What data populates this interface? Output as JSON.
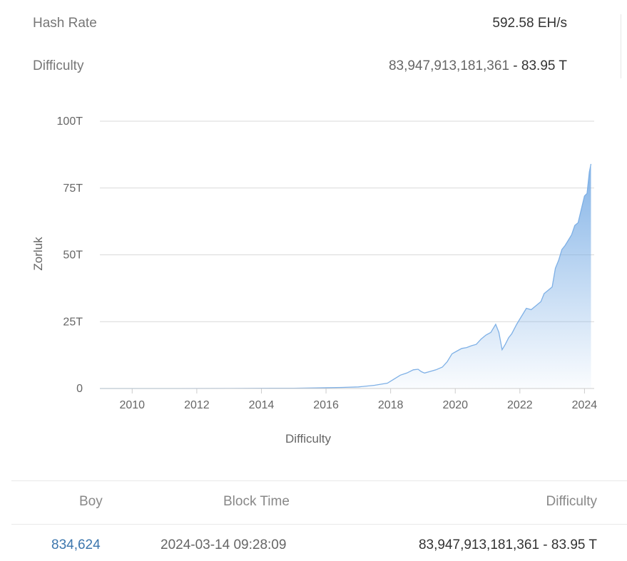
{
  "stats": {
    "hash_rate": {
      "label": "Hash Rate",
      "value": "592.58 EH/s"
    },
    "difficulty": {
      "label": "Difficulty",
      "value": "83,947,913,181,361",
      "sep": " - ",
      "short": "83.95 T"
    }
  },
  "chart_data": {
    "type": "area",
    "xlabel": "Difficulty",
    "ylabel": "Zorluk",
    "xlim": [
      2009.0,
      2024.3
    ],
    "ylim": [
      0,
      100
    ],
    "y_unit": "T",
    "x_ticks": [
      "2010",
      "2012",
      "2014",
      "2016",
      "2018",
      "2020",
      "2022",
      "2024"
    ],
    "y_ticks": [
      "0",
      "25T",
      "50T",
      "75T",
      "100T"
    ],
    "grid": true,
    "legend": "none",
    "color": "#7eb0e6",
    "series": [
      {
        "x": [
          2009.0,
          2011.0,
          2013.0,
          2015.0,
          2016.0,
          2016.5,
          2017.0,
          2017.5,
          2017.9,
          2018.1,
          2018.3,
          2018.5,
          2018.7,
          2018.85,
          2018.95,
          2019.05,
          2019.2,
          2019.4,
          2019.6,
          2019.75,
          2019.9,
          2020.05,
          2020.2,
          2020.35,
          2020.5,
          2020.65,
          2020.8,
          2020.95,
          2021.1,
          2021.25,
          2021.35,
          2021.45,
          2021.55,
          2021.65,
          2021.75,
          2021.9,
          2022.0,
          2022.1,
          2022.2,
          2022.35,
          2022.5,
          2022.65,
          2022.75,
          2022.9,
          2023.0,
          2023.1,
          2023.2,
          2023.3,
          2023.4,
          2023.5,
          2023.6,
          2023.7,
          2023.8,
          2023.9,
          2024.0,
          2024.08,
          2024.15,
          2024.2
        ],
        "y": [
          0,
          0,
          0.02,
          0.1,
          0.3,
          0.4,
          0.6,
          1.2,
          2.0,
          3.5,
          5.0,
          5.8,
          7.0,
          7.2,
          6.3,
          5.8,
          6.3,
          7.0,
          8.0,
          10.0,
          13.0,
          14.0,
          15.0,
          15.3,
          16.0,
          16.5,
          18.5,
          20.0,
          21.0,
          24.0,
          21.0,
          14.5,
          16.5,
          19.0,
          20.5,
          24.0,
          26.0,
          28.0,
          30.0,
          29.5,
          31.0,
          32.5,
          35.5,
          37.0,
          38.0,
          45.0,
          48.0,
          52.0,
          53.5,
          55.5,
          57.5,
          61.0,
          62.0,
          67.0,
          72.0,
          73.0,
          81.0,
          84.0
        ]
      }
    ]
  },
  "table": {
    "headers": [
      "Boy",
      "Block Time",
      "Difficulty"
    ],
    "rows": [
      {
        "height": "834,624",
        "time": "2024-03-14 09:28:09",
        "difficulty": "83,947,913,181,361",
        "sep": " - ",
        "short": "83.95 T"
      }
    ]
  }
}
